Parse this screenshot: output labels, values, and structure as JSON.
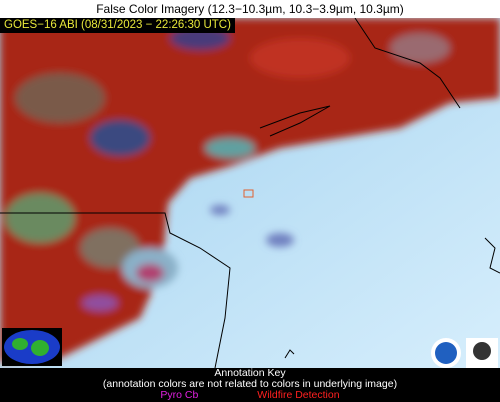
{
  "title": "False Color Imagery (12.3−10.3µm, 10.3−3.9µm, 10.3µm)",
  "image_label": "GOES−16 ABI (08/31/2023 − 22:26:30 UTC)",
  "annotation_key": {
    "title": "Annotation Key",
    "note": "(annotation colors are not related to colors in underlying image)",
    "items": [
      "Pyro Cb",
      "Wildfire Detection"
    ]
  }
}
